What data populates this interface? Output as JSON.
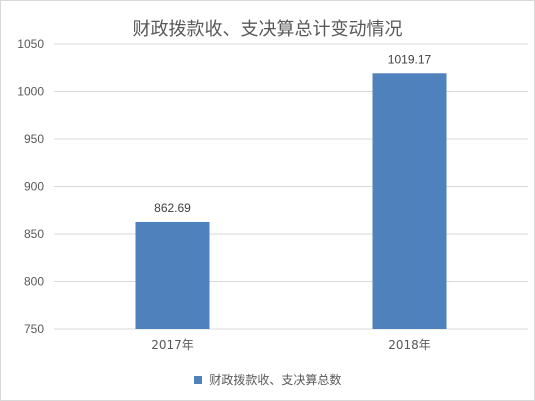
{
  "chart_data": {
    "type": "bar",
    "title": "财政拨款收、支决算总计变动情况",
    "categories": [
      "2017年",
      "2018年"
    ],
    "series": [
      {
        "name": "财政拨款收、支决算总数",
        "values": [
          862.69,
          1019.17
        ]
      }
    ],
    "data_labels": [
      "862.69",
      "1019.17"
    ],
    "ylim": [
      750,
      1050
    ],
    "yticks": [
      750,
      800,
      850,
      900,
      950,
      1000,
      1050
    ],
    "grid": true,
    "legend_position": "bottom",
    "colors": {
      "bar": "#4f81bd",
      "grid": "#d9d9d9",
      "text": "#595959"
    }
  }
}
